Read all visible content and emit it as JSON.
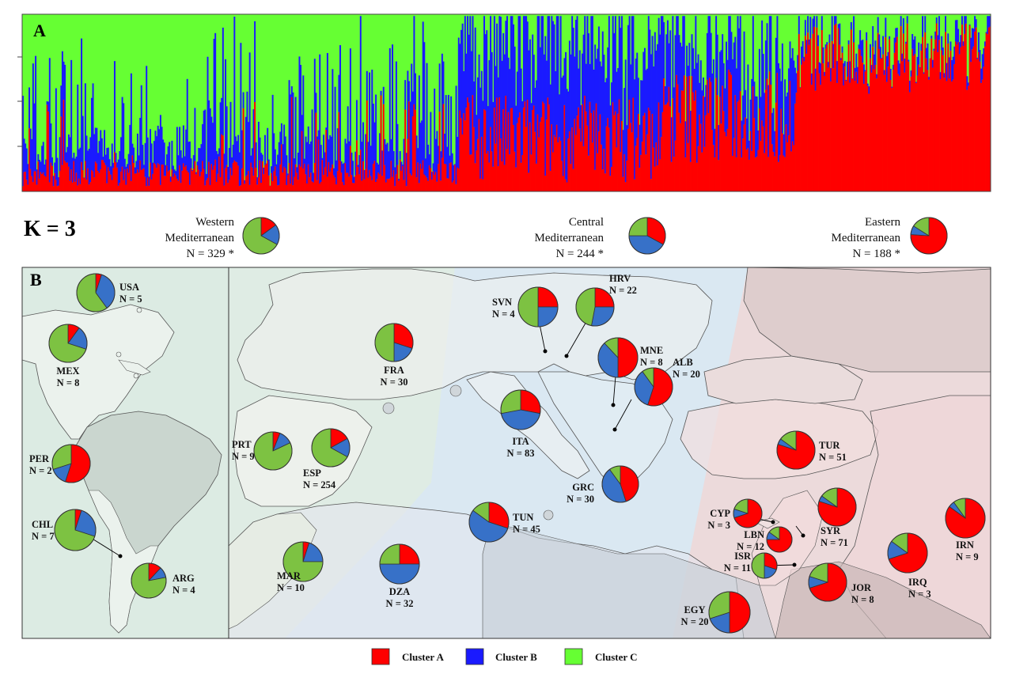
{
  "panel_a": {
    "label": "A",
    "colors": {
      "a": "#ff0000",
      "b": "#1a1aff",
      "c": "#66ff33"
    }
  },
  "k_label": "K = 3",
  "regions": [
    {
      "name": "Western",
      "name2": "Mediterranean",
      "n": "N = 329 *",
      "values": [
        0.15,
        0.18,
        0.67
      ]
    },
    {
      "name": "Central",
      "name2": "Mediterranean",
      "n": "N = 244 *",
      "values": [
        0.33,
        0.42,
        0.25
      ]
    },
    {
      "name": "Eastern",
      "name2": "Mediterranean",
      "n": "N = 188  *",
      "values": [
        0.76,
        0.08,
        0.16
      ]
    }
  ],
  "panel_b": {
    "label": "B"
  },
  "legend": [
    {
      "label": "Cluster A",
      "color": "#ff0000"
    },
    {
      "label": "Cluster B",
      "color": "#1a1aff"
    },
    {
      "label": "Cluster C",
      "color": "#66ff33"
    }
  ],
  "pie_colors": {
    "a": "#ff0000",
    "b": "#3771c8",
    "c": "#7dc242"
  },
  "countries": [
    {
      "code": "USA",
      "n": "N = 5",
      "values": [
        0.05,
        0.35,
        0.6
      ]
    },
    {
      "code": "MEX",
      "n": "N = 8",
      "values": [
        0.1,
        0.2,
        0.7
      ]
    },
    {
      "code": "PER",
      "n": "N = 2",
      "values": [
        0.55,
        0.15,
        0.3
      ]
    },
    {
      "code": "CHL",
      "n": "N = 7",
      "values": [
        0.05,
        0.25,
        0.7
      ]
    },
    {
      "code": "ARG",
      "n": "N = 4",
      "values": [
        0.12,
        0.1,
        0.78
      ]
    },
    {
      "code": "PRT",
      "n": "N = 9",
      "values": [
        0.06,
        0.12,
        0.82
      ]
    },
    {
      "code": "ESP",
      "n": "N = 254",
      "values": [
        0.17,
        0.16,
        0.67
      ]
    },
    {
      "code": "FRA",
      "n": "N = 30",
      "values": [
        0.3,
        0.2,
        0.5
      ]
    },
    {
      "code": "MAR",
      "n": "N = 10",
      "values": [
        0.05,
        0.2,
        0.75
      ]
    },
    {
      "code": "DZA",
      "n": "N = 32",
      "values": [
        0.25,
        0.5,
        0.25
      ]
    },
    {
      "code": "TUN",
      "n": "N = 45",
      "values": [
        0.3,
        0.55,
        0.15
      ]
    },
    {
      "code": "ITA",
      "n": "N = 83",
      "values": [
        0.28,
        0.44,
        0.28
      ]
    },
    {
      "code": "SVN",
      "n": "N = 4",
      "values": [
        0.25,
        0.25,
        0.5
      ]
    },
    {
      "code": "HRV",
      "n": "N = 22",
      "values": [
        0.25,
        0.28,
        0.47
      ]
    },
    {
      "code": "MNE",
      "n": "N = 8",
      "values": [
        0.5,
        0.38,
        0.12
      ]
    },
    {
      "code": "ALB",
      "n": "N = 20",
      "values": [
        0.55,
        0.35,
        0.1
      ]
    },
    {
      "code": "GRC",
      "n": "N = 30",
      "values": [
        0.45,
        0.45,
        0.1
      ]
    },
    {
      "code": "TUR",
      "n": "N = 51",
      "values": [
        0.8,
        0.05,
        0.15
      ]
    },
    {
      "code": "CYP",
      "n": "N = 3",
      "values": [
        0.7,
        0.1,
        0.2
      ]
    },
    {
      "code": "SYR",
      "n": "N = 71",
      "values": [
        0.8,
        0.05,
        0.15
      ]
    },
    {
      "code": "LBN",
      "n": "N = 12",
      "values": [
        0.75,
        0.1,
        0.15
      ]
    },
    {
      "code": "ISR",
      "n": "N = 11",
      "values": [
        0.3,
        0.2,
        0.5
      ]
    },
    {
      "code": "JOR",
      "n": "N = 8",
      "values": [
        0.7,
        0.1,
        0.2
      ]
    },
    {
      "code": "IRN",
      "n": "N = 9",
      "values": [
        0.85,
        0.05,
        0.1
      ]
    },
    {
      "code": "IRQ",
      "n": "N = 3",
      "values": [
        0.7,
        0.15,
        0.15
      ]
    },
    {
      "code": "EGY",
      "n": "N = 20",
      "values": [
        0.5,
        0.2,
        0.3
      ]
    }
  ]
}
